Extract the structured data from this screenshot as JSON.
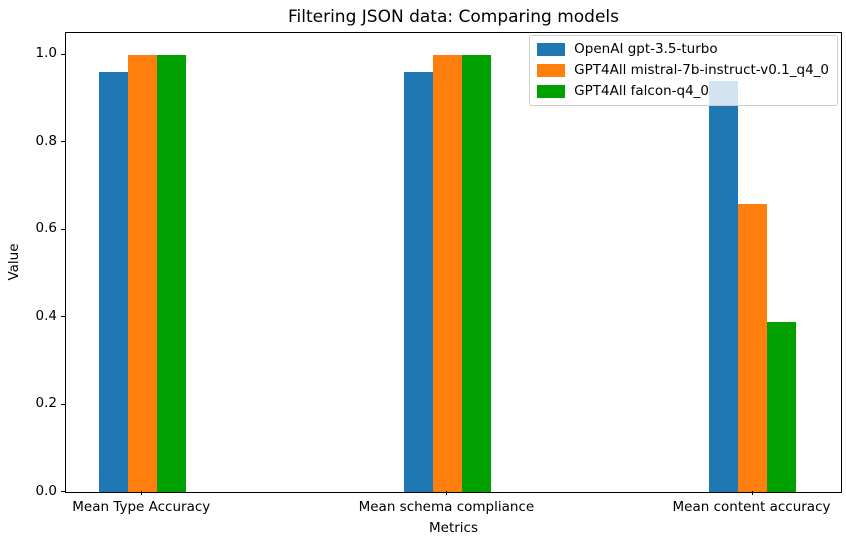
{
  "chart_data": {
    "type": "bar",
    "title": "Filtering JSON data: Comparing models",
    "xlabel": "Metrics",
    "ylabel": "Value",
    "categories": [
      "Mean Type Accuracy",
      "Mean schema compliance",
      "Mean content accuracy"
    ],
    "series": [
      {
        "name": "OpenAI gpt-3.5-turbo",
        "color": "#1f77b4",
        "values": [
          0.96,
          0.96,
          0.94
        ]
      },
      {
        "name": "GPT4All mistral-7b-instruct-v0.1_q4_0",
        "color": "#ff7f0e",
        "values": [
          1.0,
          1.0,
          0.66
        ]
      },
      {
        "name": "GPT4All falcon-q4_0",
        "color": "#00a000",
        "values": [
          1.0,
          1.0,
          0.39
        ]
      }
    ],
    "ytick_labels": [
      "0.0",
      "0.2",
      "0.4",
      "0.6",
      "0.8",
      "1.0"
    ],
    "ytick_values": [
      0,
      0.2,
      0.4,
      0.6,
      0.8,
      1.0
    ],
    "ylim": [
      0,
      1.05
    ],
    "xlim": [
      -0.25,
      2.29
    ],
    "bar_width_units": 0.095,
    "grid": false,
    "legend_position": "upper right",
    "background_color": "#ffffff",
    "text_color": "#000000"
  }
}
